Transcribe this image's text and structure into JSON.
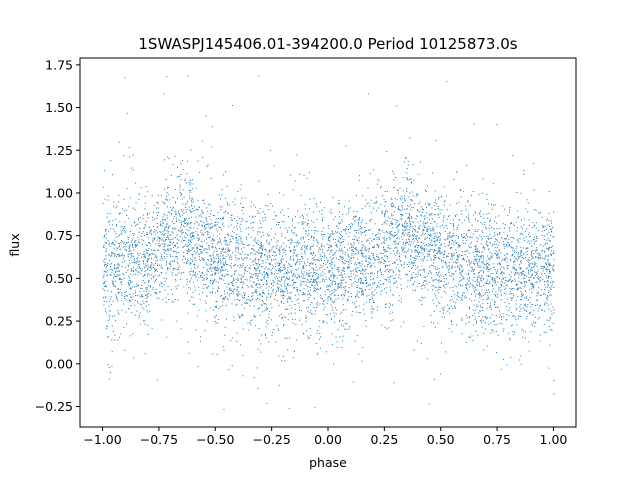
{
  "chart_data": {
    "type": "scatter",
    "title": "1SWASPJ145406.01-394200.0 Period 10125873.0s",
    "xlabel": "phase",
    "ylabel": "flux",
    "xlim": [
      -1.1,
      1.1
    ],
    "ylim": [
      -0.37,
      1.79
    ],
    "xticks": [
      -1.0,
      -0.75,
      -0.5,
      -0.25,
      0.0,
      0.25,
      0.5,
      0.75,
      1.0
    ],
    "xtick_labels": [
      "−1.00",
      "−0.75",
      "−0.50",
      "−0.25",
      "0.00",
      "0.25",
      "0.50",
      "0.75",
      "1.00"
    ],
    "yticks": [
      -0.25,
      0.0,
      0.25,
      0.5,
      0.75,
      1.0,
      1.25,
      1.5,
      1.75
    ],
    "ytick_labels": [
      "−0.25",
      "0.00",
      "0.25",
      "0.50",
      "0.75",
      "1.00",
      "1.25",
      "1.50",
      "1.75"
    ],
    "grid": false,
    "legend": "none",
    "marker_color": "#1f77b4",
    "series": [
      {
        "x_range": [
          -1.0,
          1.0
        ],
        "profile_phase": [
          0.0,
          0.1,
          0.2,
          0.3,
          0.35,
          0.4,
          0.5,
          0.6,
          0.7,
          0.8,
          0.9,
          1.0
        ],
        "profile_mean_flux": [
          0.55,
          0.6,
          0.6,
          0.72,
          0.78,
          0.72,
          0.62,
          0.58,
          0.55,
          0.55,
          0.55,
          0.55
        ],
        "flux_spread": 0.18,
        "flux_min": -0.27,
        "flux_max": 1.7,
        "point_count": 24000
      }
    ]
  }
}
